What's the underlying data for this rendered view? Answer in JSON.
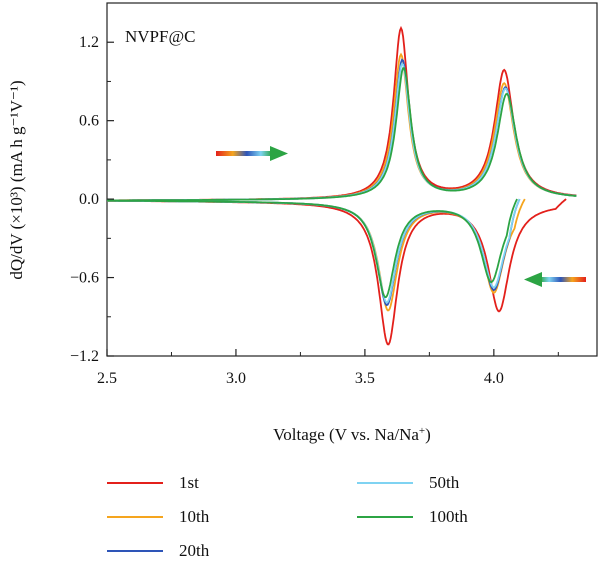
{
  "chart_data": {
    "type": "line",
    "sample_label": "NVPF@C",
    "xlabel": {
      "pre": "Voltage (V vs. Na/Na",
      "sup": "+",
      "post": ")"
    },
    "ylabel": "dQ/dV (×10³) (mA h g⁻¹V⁻¹)",
    "xlim": [
      2.5,
      4.4
    ],
    "ylim": [
      -1.2,
      1.5
    ],
    "x_ticks": [
      "2.5",
      "3.0",
      "3.5",
      "4.0"
    ],
    "y_ticks": [
      "−1.2",
      "−0.6",
      "0.0",
      "0.6",
      "1.2"
    ],
    "grid": false,
    "legend_position": "bottom",
    "colors": {
      "1st": "#e3201b",
      "10th": "#f5a51e",
      "20th": "#2e55b8",
      "50th": "#7fd3f2",
      "100th": "#2ca444"
    },
    "series": [
      {
        "name": "1st",
        "charge_peaks": [
          [
            3.64,
            1.3
          ],
          [
            4.04,
            0.98
          ]
        ],
        "discharge_peaks": [
          [
            3.59,
            -1.08
          ],
          [
            4.02,
            -0.82
          ]
        ],
        "curve_end_x": 4.28
      },
      {
        "name": "10th",
        "charge_peaks": [
          [
            3.64,
            1.1
          ],
          [
            4.04,
            0.88
          ]
        ],
        "discharge_peaks": [
          [
            3.59,
            -0.82
          ],
          [
            4.0,
            -0.68
          ]
        ],
        "curve_end_x": 4.12
      },
      {
        "name": "20th",
        "charge_peaks": [
          [
            3.645,
            1.06
          ],
          [
            4.045,
            0.85
          ]
        ],
        "discharge_peaks": [
          [
            3.585,
            -0.78
          ],
          [
            4.0,
            -0.66
          ]
        ],
        "curve_end_x": 4.1
      },
      {
        "name": "50th",
        "charge_peaks": [
          [
            3.645,
            1.03
          ],
          [
            4.045,
            0.84
          ]
        ],
        "discharge_peaks": [
          [
            3.585,
            -0.76
          ],
          [
            4.0,
            -0.64
          ]
        ],
        "curve_end_x": 4.1
      },
      {
        "name": "100th",
        "charge_peaks": [
          [
            3.65,
            1.0
          ],
          [
            4.05,
            0.8
          ]
        ],
        "discharge_peaks": [
          [
            3.58,
            -0.72
          ],
          [
            3.99,
            -0.6
          ]
        ],
        "curve_end_x": 4.09
      }
    ]
  }
}
